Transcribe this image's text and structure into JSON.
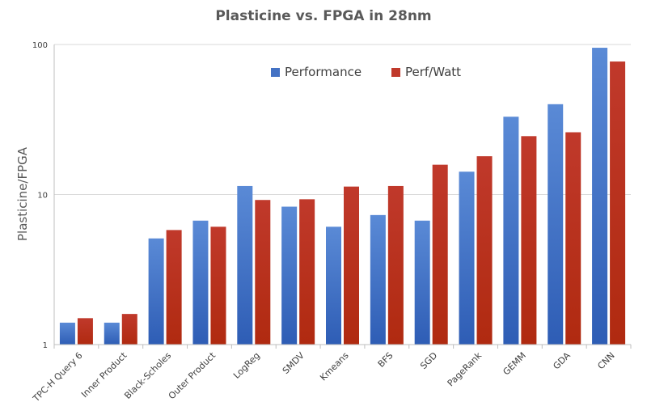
{
  "chart_data": {
    "type": "bar",
    "title": "Plasticine vs. FPGA in 28nm",
    "xlabel": "",
    "ylabel": "Plasticine/FPGA",
    "yscale": "log",
    "ylim": [
      1,
      100
    ],
    "yticks": [
      1,
      10,
      100
    ],
    "ytick_labels": [
      "1",
      "10",
      "100"
    ],
    "grid": true,
    "legend_position": "top-center",
    "categories": [
      "TPC-H Query 6",
      "Inner Product",
      "Black-Scholes",
      "Outer Product",
      "LogReg",
      "SMDV",
      "Kmeans",
      "BFS",
      "SGD",
      "PageRank",
      "GEMM",
      "GDA",
      "CNN"
    ],
    "series": [
      {
        "name": "Performance",
        "color": "#4472C4",
        "values": [
          1.4,
          1.4,
          5.1,
          6.7,
          11.4,
          8.3,
          6.1,
          7.3,
          6.7,
          14.2,
          33.0,
          40.0,
          95.1
        ]
      },
      {
        "name": "Perf/Watt",
        "color": "#C0392B",
        "values": [
          1.5,
          1.6,
          5.8,
          6.1,
          9.2,
          9.3,
          11.3,
          11.4,
          15.8,
          18.0,
          24.5,
          26.0,
          77.0
        ]
      }
    ]
  }
}
